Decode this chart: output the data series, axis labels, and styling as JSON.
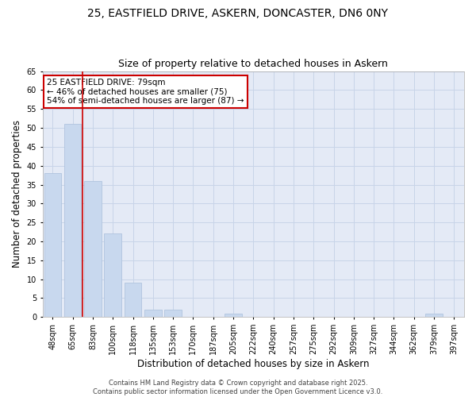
{
  "title_line1": "25, EASTFIELD DRIVE, ASKERN, DONCASTER, DN6 0NY",
  "title_line2": "Size of property relative to detached houses in Askern",
  "xlabel": "Distribution of detached houses by size in Askern",
  "ylabel": "Number of detached properties",
  "categories": [
    "48sqm",
    "65sqm",
    "83sqm",
    "100sqm",
    "118sqm",
    "135sqm",
    "153sqm",
    "170sqm",
    "187sqm",
    "205sqm",
    "222sqm",
    "240sqm",
    "257sqm",
    "275sqm",
    "292sqm",
    "309sqm",
    "327sqm",
    "344sqm",
    "362sqm",
    "379sqm",
    "397sqm"
  ],
  "values": [
    38,
    51,
    36,
    22,
    9,
    2,
    2,
    0,
    0,
    1,
    0,
    0,
    0,
    0,
    0,
    0,
    0,
    0,
    0,
    1,
    0
  ],
  "bar_color": "#c8d8ee",
  "bar_edgecolor": "#b0c4de",
  "vline_x_idx": 2,
  "vline_color": "#cc0000",
  "annotation_text": "25 EASTFIELD DRIVE: 79sqm\n← 46% of detached houses are smaller (75)\n54% of semi-detached houses are larger (87) →",
  "annotation_box_color": "white",
  "annotation_box_edgecolor": "#cc0000",
  "annotation_fontsize": 7.5,
  "ylim": [
    0,
    65
  ],
  "yticks": [
    0,
    5,
    10,
    15,
    20,
    25,
    30,
    35,
    40,
    45,
    50,
    55,
    60,
    65
  ],
  "grid_color": "#c8d4e8",
  "background_color": "#e4eaf6",
  "footer_text": "Contains HM Land Registry data © Crown copyright and database right 2025.\nContains public sector information licensed under the Open Government Licence v3.0.",
  "title_fontsize": 10,
  "subtitle_fontsize": 9,
  "axis_label_fontsize": 8.5,
  "tick_fontsize": 7,
  "footer_fontsize": 6
}
